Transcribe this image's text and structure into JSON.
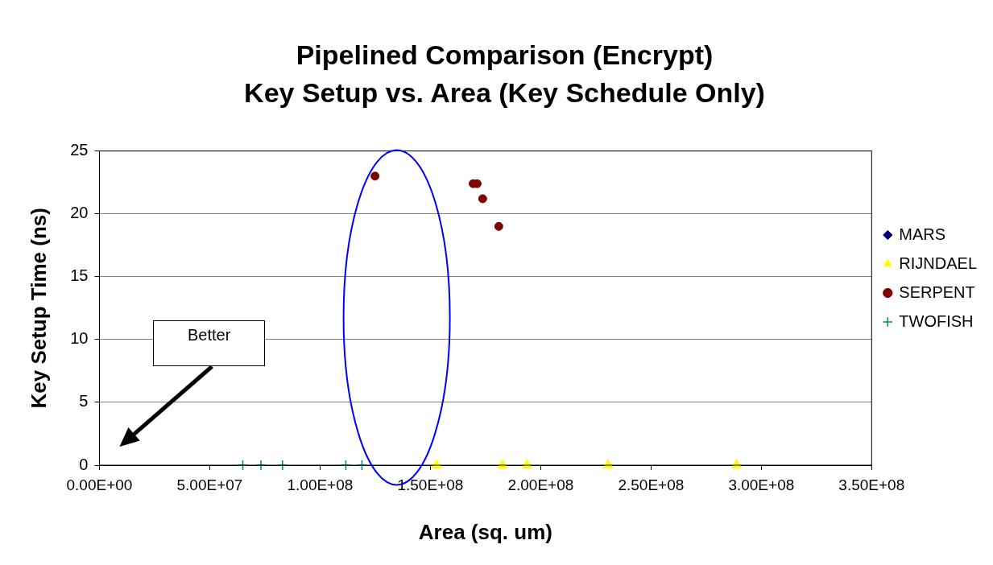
{
  "chart_data": {
    "type": "scatter",
    "title": "Pipelined Comparison (Encrypt)",
    "subtitle": "Key Setup vs. Area (Key Schedule Only)",
    "xlabel": "Area (sq. um)",
    "ylabel": "Key Setup Time (ns)",
    "xlim": [
      0,
      350000000
    ],
    "xticks": [
      {
        "value": 0,
        "label": "0.00E+00"
      },
      {
        "value": 50000000,
        "label": "5.00E+07"
      },
      {
        "value": 100000000,
        "label": "1.00E+08"
      },
      {
        "value": 150000000,
        "label": "1.50E+08"
      },
      {
        "value": 200000000,
        "label": "2.00E+08"
      },
      {
        "value": 250000000,
        "label": "2.50E+08"
      },
      {
        "value": 300000000,
        "label": "3.00E+08"
      },
      {
        "value": 350000000,
        "label": "3.50E+08"
      }
    ],
    "ylim": [
      0,
      25
    ],
    "yticks": [
      0,
      5,
      10,
      15,
      20,
      25
    ],
    "grid": "y",
    "legend": "right",
    "series": [
      {
        "name": "MARS",
        "color": "#000080",
        "marker": "diamond"
      },
      {
        "name": "RIJNDAEL",
        "color": "#ffff00",
        "marker": "triangle",
        "x": [
          152800000,
          182700000,
          193800000,
          230600000,
          288800000
        ],
        "values": [
          0,
          0,
          0,
          0,
          0
        ]
      },
      {
        "name": "SERPENT",
        "color": "#800000",
        "marker": "circle",
        "x": [
          124900000,
          169400000,
          171200000,
          173700000,
          181000000
        ],
        "values": [
          23.0,
          22.4,
          22.4,
          21.2,
          19.0
        ]
      },
      {
        "name": "TWOFISH",
        "color": "#008080",
        "marker": "cross",
        "x": [
          65000000,
          73200000,
          83000000,
          111700000,
          119000000
        ],
        "values": [
          0,
          0,
          0,
          0,
          0
        ]
      }
    ],
    "annotations": [
      "Better"
    ]
  }
}
